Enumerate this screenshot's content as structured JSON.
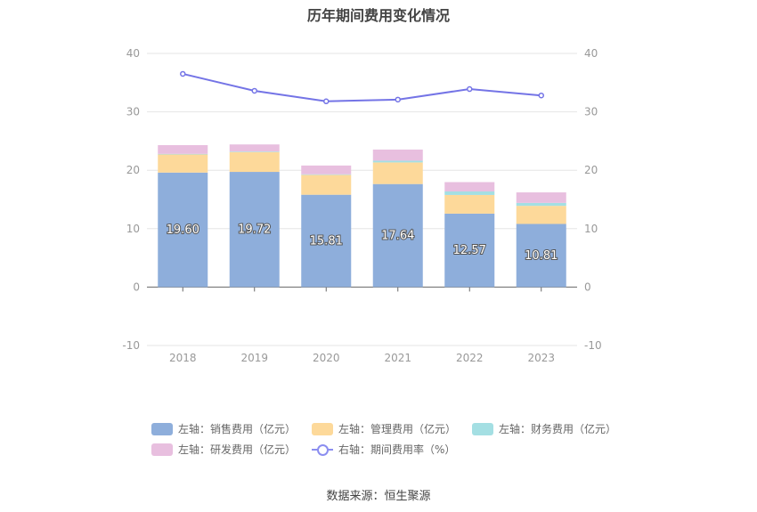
{
  "chart_data": {
    "type": "bar",
    "title": "历年期间费用变化情况",
    "categories": [
      "2018",
      "2019",
      "2020",
      "2021",
      "2022",
      "2023"
    ],
    "left_axis": {
      "ylim": [
        -10,
        40
      ],
      "ticks": [
        "-10",
        "0",
        "10",
        "20",
        "30",
        "40"
      ]
    },
    "right_axis": {
      "ylim": [
        -10,
        40
      ],
      "ticks": [
        "-10",
        "0",
        "10",
        "20",
        "30",
        "40"
      ]
    },
    "series": [
      {
        "name": "左轴：销售费用（亿元）",
        "type": "bar",
        "stack": true,
        "color": "#8eaedb",
        "values": [
          19.6,
          19.72,
          15.81,
          17.64,
          12.57,
          10.81
        ],
        "labels": [
          "19.60",
          "19.72",
          "15.81",
          "17.64",
          "12.57",
          "10.81"
        ]
      },
      {
        "name": "左轴：管理费用（亿元）",
        "type": "bar",
        "stack": true,
        "color": "#fdd99a",
        "values": [
          3.1,
          3.4,
          3.4,
          3.7,
          3.2,
          3.1
        ]
      },
      {
        "name": "左轴：财务费用（亿元）",
        "type": "bar",
        "stack": true,
        "color": "#a4dfe3",
        "values": [
          0.1,
          0.1,
          0.1,
          0.3,
          0.6,
          0.5
        ]
      },
      {
        "name": "左轴：研发费用（亿元）",
        "type": "bar",
        "stack": true,
        "color": "#e8bfdf",
        "values": [
          1.5,
          1.2,
          1.5,
          1.9,
          1.6,
          1.8
        ]
      },
      {
        "name": "右轴：期间费用率（%）",
        "type": "line",
        "axis": "right",
        "color": "#7474e6",
        "values": [
          36.5,
          33.6,
          31.8,
          32.1,
          33.9,
          32.8
        ]
      }
    ],
    "grid": true,
    "legend_position": "bottom"
  },
  "source_text": "数据来源：恒生聚源"
}
